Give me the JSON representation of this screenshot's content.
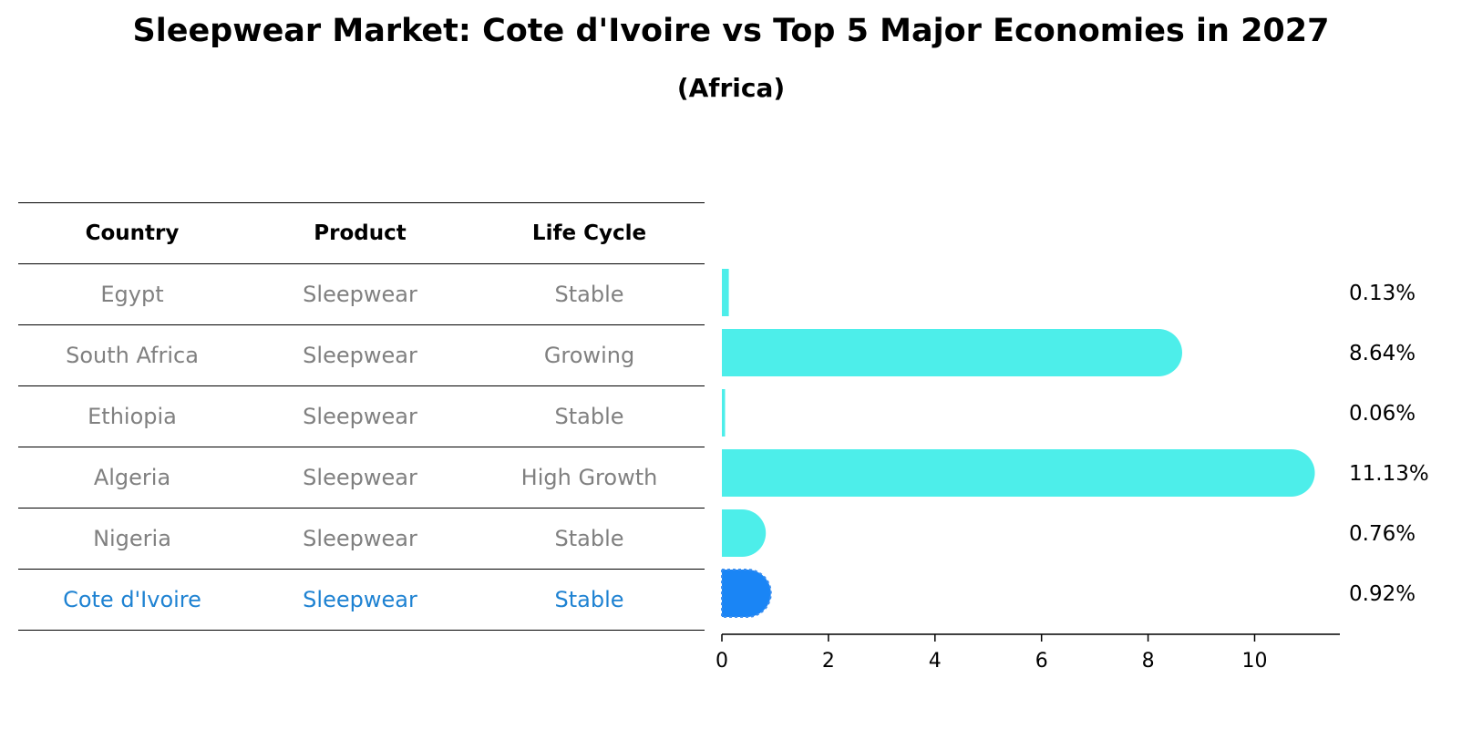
{
  "title": "Sleepwear Market: Cote d'Ivoire vs Top 5 Major Economies in 2027",
  "subtitle": "(Africa)",
  "table": {
    "headers": [
      "Country",
      "Product",
      "Life Cycle"
    ],
    "rows": [
      {
        "country": "Egypt",
        "product": "Sleepwear",
        "life_cycle": "Stable"
      },
      {
        "country": "South Africa",
        "product": "Sleepwear",
        "life_cycle": "Growing"
      },
      {
        "country": "Ethiopia",
        "product": "Sleepwear",
        "life_cycle": "Stable"
      },
      {
        "country": "Algeria",
        "product": "Sleepwear",
        "life_cycle": "High Growth"
      },
      {
        "country": "Nigeria",
        "product": "Sleepwear",
        "life_cycle": "Stable"
      },
      {
        "country": "Cote d'Ivoire",
        "product": "Sleepwear",
        "life_cycle": "Stable"
      }
    ],
    "highlight_row": 5,
    "highlight_color": "#1e82d2"
  },
  "chart_data": {
    "type": "bar",
    "orientation": "horizontal",
    "categories": [
      "Egypt",
      "South Africa",
      "Ethiopia",
      "Algeria",
      "Nigeria",
      "Cote d'Ivoire"
    ],
    "values": [
      0.13,
      8.64,
      0.06,
      11.13,
      0.76,
      0.92
    ],
    "value_labels": [
      "0.13%",
      "8.64%",
      "0.06%",
      "11.13%",
      "0.76%",
      "0.92%"
    ],
    "xlim": [
      0,
      11.6
    ],
    "xticks": [
      0,
      2,
      4,
      6,
      8,
      10
    ],
    "colors": {
      "default": "#4deeea",
      "highlight": "#1a85f5"
    },
    "highlight_index": 5,
    "grid": false
  }
}
